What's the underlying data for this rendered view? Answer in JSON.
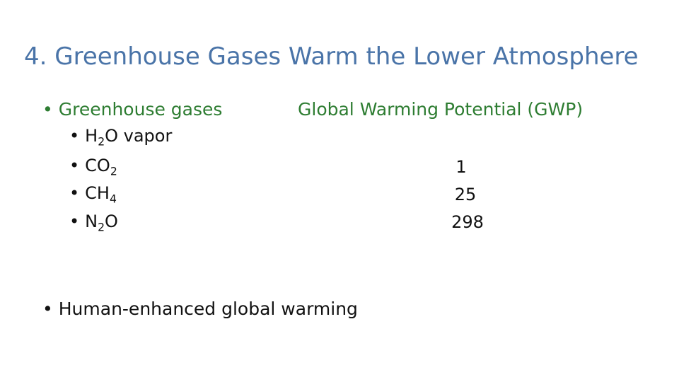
{
  "title": {
    "text": "4. Greenhouse Gases Warm the Lower Atmosphere",
    "color": "#4a74a8"
  },
  "section1": {
    "bullet": "•",
    "label": "Greenhouse gases",
    "label_color": "#2e7d32",
    "gwp_header": "Global Warming Potential (GWP)",
    "gases": [
      {
        "main": "H",
        "sub": "2",
        "rest": "O vapor",
        "gwp": ""
      },
      {
        "main": "CO",
        "sub": "2",
        "rest": "",
        "gwp": "1"
      },
      {
        "main": "CH",
        "sub": "4",
        "rest": "",
        "gwp": "25"
      },
      {
        "main": "N",
        "sub": "2",
        "rest": "O",
        "gwp": "298"
      }
    ]
  },
  "section2": {
    "bullet": "•",
    "label": "Human-enhanced global warming"
  }
}
